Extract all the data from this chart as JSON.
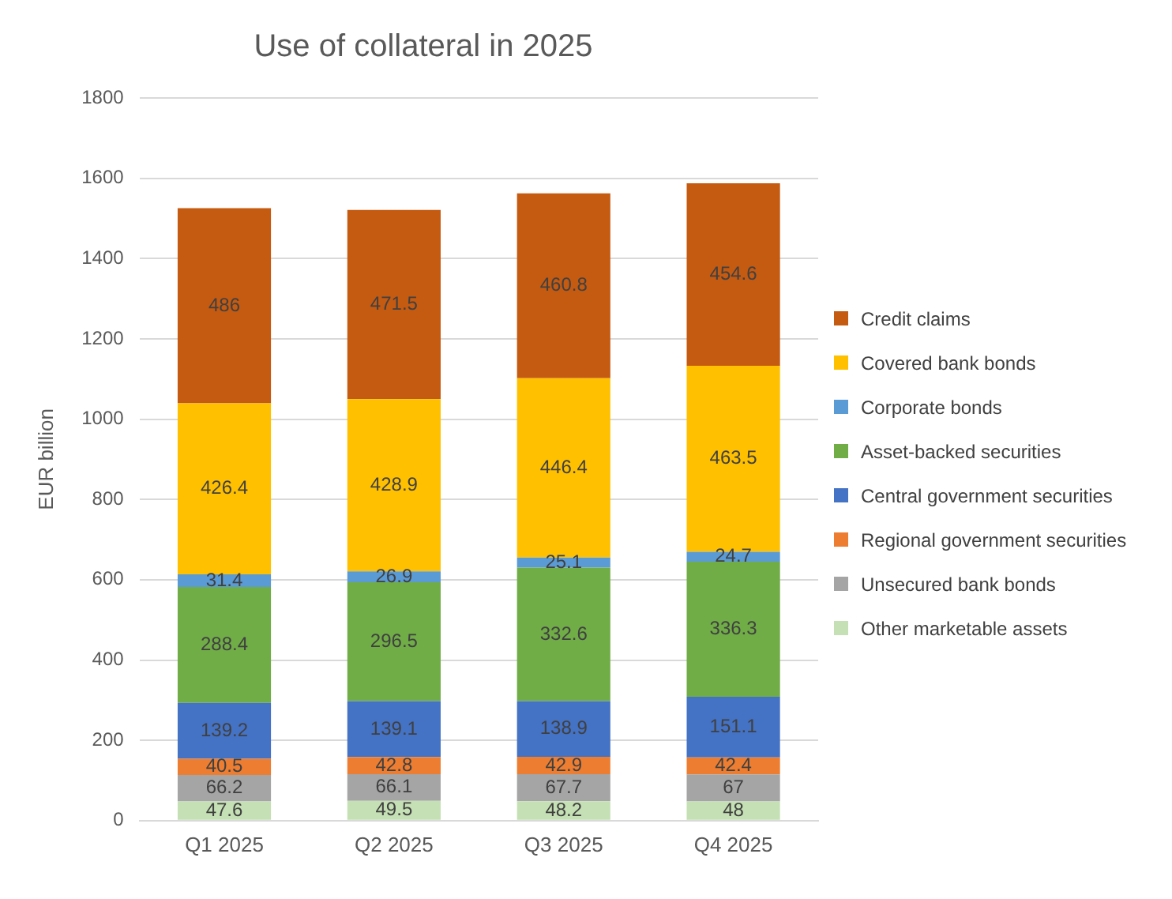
{
  "chart_data": {
    "type": "bar",
    "title": "Use of collateral in 2025",
    "ylabel": "EUR billion",
    "categories": [
      "Q1 2025",
      "Q2 2025",
      "Q3 2025",
      "Q4 2025"
    ],
    "series": [
      {
        "name": "Other marketable assets",
        "color": "#c5e0b4",
        "values": [
          47.6,
          49.5,
          48.2,
          48
        ]
      },
      {
        "name": "Unsecured bank bonds",
        "color": "#a5a5a5",
        "values": [
          66.2,
          66.1,
          67.7,
          67
        ]
      },
      {
        "name": "Regional government securities",
        "color": "#ed7d31",
        "values": [
          40.5,
          42.8,
          42.9,
          42.4
        ]
      },
      {
        "name": "Central government securities",
        "color": "#4472c4",
        "values": [
          139.2,
          139.1,
          138.9,
          151.1
        ]
      },
      {
        "name": "Asset-backed securities",
        "color": "#70ad47",
        "values": [
          288.4,
          296.5,
          332.6,
          336.3
        ]
      },
      {
        "name": "Corporate bonds",
        "color": "#5b9bd5",
        "values": [
          31.4,
          26.9,
          25.1,
          24.7
        ]
      },
      {
        "name": "Covered bank bonds",
        "color": "#ffc000",
        "values": [
          426.4,
          428.9,
          446.4,
          463.5
        ]
      },
      {
        "name": "Credit claims",
        "color": "#c55a11",
        "values": [
          486,
          471.5,
          460.8,
          454.6
        ]
      }
    ],
    "stacked": true,
    "ylim": [
      0,
      1800
    ],
    "yticks": [
      0,
      200,
      400,
      600,
      800,
      1000,
      1200,
      1400,
      1600,
      1800
    ],
    "grid": "y",
    "legend": "right",
    "data_labels": true
  }
}
